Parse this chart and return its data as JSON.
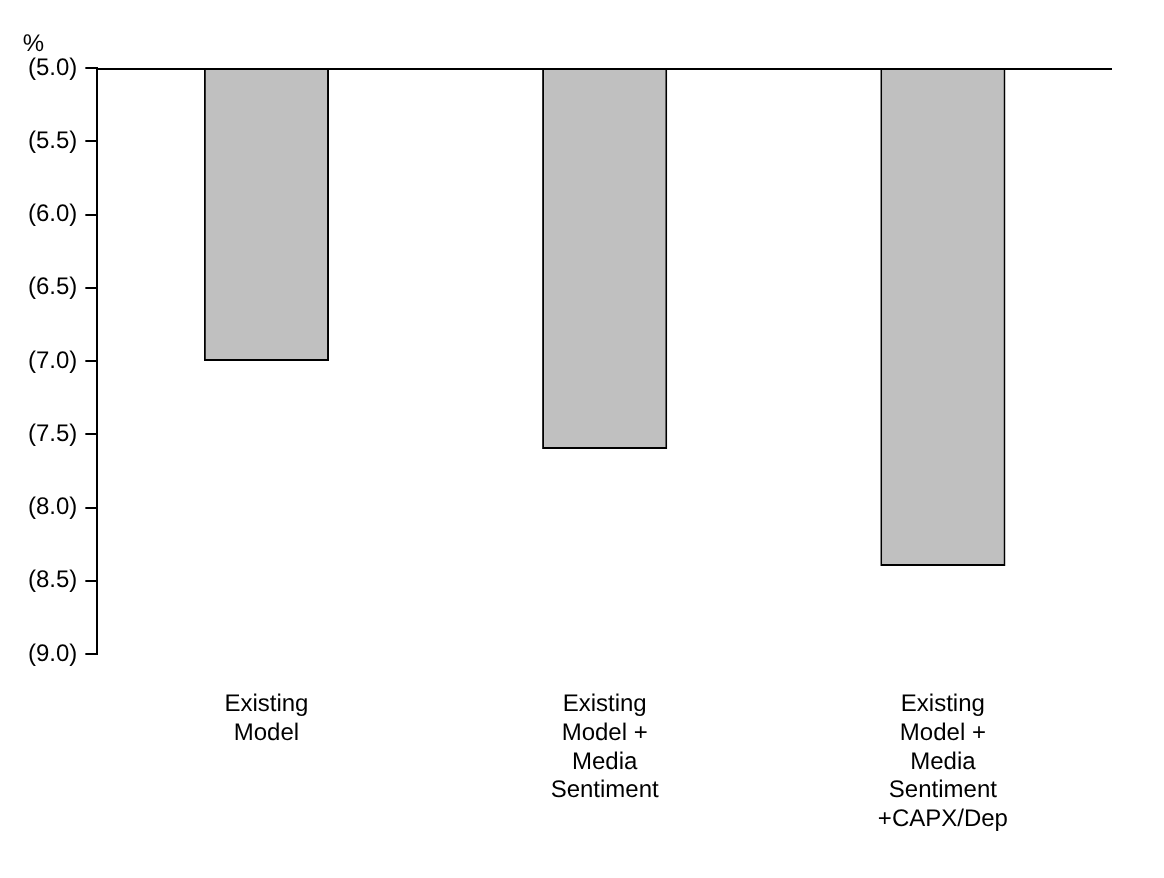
{
  "chart_data": {
    "type": "bar",
    "ylabel": "%",
    "categories": [
      "Existing Model",
      "Existing Model + Media Sentiment",
      "Existing Model + Media Sentiment +CAPX/Dep"
    ],
    "values": [
      -7.0,
      -7.6,
      -8.4
    ],
    "color": "#c0c0c0",
    "ylim": [
      -9,
      -5
    ],
    "yticks": [
      {
        "value": -9,
        "label": "(9.0)"
      },
      {
        "value": -8.5,
        "label": "(8.5)"
      },
      {
        "value": -8,
        "label": "(8.0)"
      },
      {
        "value": -7.5,
        "label": "(7.5)"
      },
      {
        "value": -7,
        "label": "(7.0)"
      },
      {
        "value": -6.5,
        "label": "(6.5)"
      },
      {
        "value": -6,
        "label": "(6.0)"
      },
      {
        "value": -5.5,
        "label": "(5.5)"
      },
      {
        "value": -5,
        "label": "(5.0)"
      }
    ],
    "grid": false,
    "legend": false
  }
}
